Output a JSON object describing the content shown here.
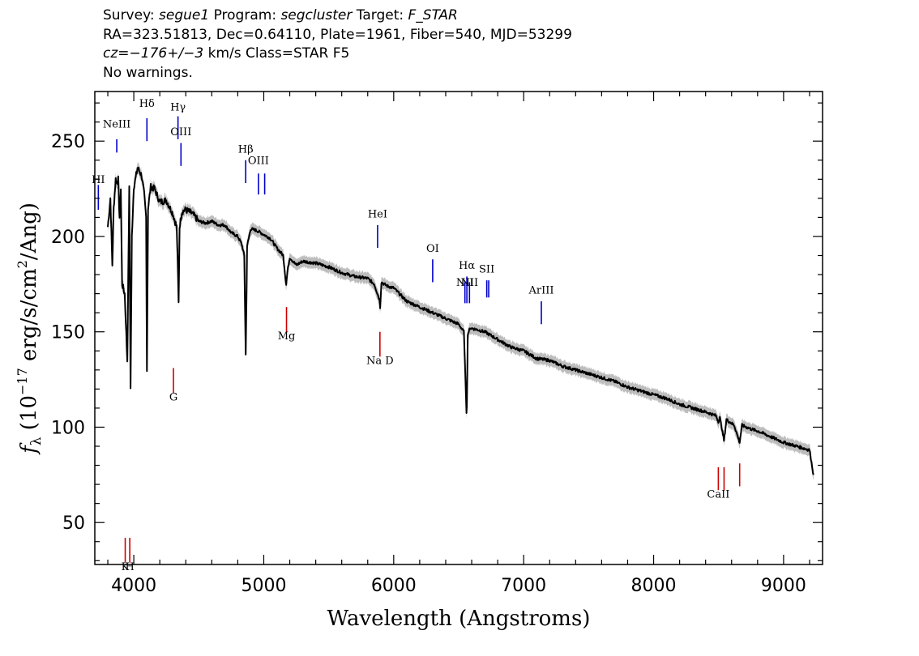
{
  "header": {
    "line1": {
      "survey_label": "Survey: ",
      "survey": "segue1",
      "program_label": " Program: ",
      "program": "segcluster",
      "target_label": " Target: ",
      "target": "F_STAR"
    },
    "line2": "RA=323.51813, Dec=0.64110, Plate=1961, Fiber=540, MJD=53299",
    "line3": {
      "cz_value": "cz=−176+/−3",
      "rest": " km/s Class=STAR F5"
    },
    "line4": "No warnings."
  },
  "chart_data": {
    "type": "line",
    "xlabel": "Wavelength (Angstroms)",
    "ylabel": "f_λ (10^-17 erg/s/cm^2/Ang)",
    "xlim": [
      3700,
      9300
    ],
    "ylim": [
      28,
      276
    ],
    "x_ticks": [
      4000,
      5000,
      6000,
      7000,
      8000,
      9000
    ],
    "y_ticks": [
      50,
      100,
      150,
      200,
      250
    ],
    "grid": false,
    "colors": {
      "spectrum": "#000000",
      "error_band": "#bdbdbd",
      "emission": "#0000cc",
      "absorption": "#cc0000"
    },
    "series": [
      {
        "wavelength": [
          3800,
          3820,
          3835,
          3845,
          3860,
          3870,
          3880,
          3890,
          3900,
          3910,
          3930,
          3950,
          3965,
          3975,
          3985,
          4000,
          4030,
          4060,
          4080,
          4095,
          4101,
          4110,
          4130,
          4160,
          4200,
          4250,
          4300,
          4330,
          4340,
          4345,
          4352,
          4370,
          4400,
          4450,
          4500,
          4550,
          4600,
          4650,
          4700,
          4750,
          4800,
          4830,
          4850,
          4861,
          4872,
          4900,
          4950,
          5000,
          5050,
          5100,
          5150,
          5167,
          5173,
          5183,
          5200,
          5250,
          5300,
          5400,
          5500,
          5600,
          5700,
          5800,
          5850,
          5890,
          5896,
          5905,
          5950,
          6000,
          6100,
          6200,
          6300,
          6400,
          6500,
          6540,
          6560,
          6563,
          6570,
          6590,
          6650,
          6700,
          6800,
          6900,
          7000,
          7100,
          7200,
          7300,
          7400,
          7500,
          7600,
          7700,
          7800,
          7900,
          8000,
          8100,
          8200,
          8300,
          8400,
          8480,
          8498,
          8510,
          8542,
          8560,
          8620,
          8662,
          8680,
          8750,
          8800,
          8900,
          9000,
          9100,
          9150,
          9200,
          9230
        ],
        "flux": [
          205,
          220,
          185,
          215,
          230,
          228,
          230,
          210,
          225,
          175,
          170,
          135,
          225,
          120,
          200,
          226,
          236,
          232,
          222,
          210,
          130,
          215,
          226,
          225,
          218,
          219,
          212,
          205,
          180,
          165,
          205,
          213,
          214,
          212,
          208,
          207,
          208,
          206,
          206,
          202,
          200,
          196,
          190,
          138,
          195,
          204,
          203,
          201,
          199,
          194,
          190,
          178,
          175,
          182,
          189,
          185,
          187,
          186,
          184,
          181,
          179,
          178,
          175,
          167,
          163,
          176,
          174,
          173,
          166,
          163,
          160,
          157,
          154,
          150,
          108,
          112,
          149,
          152,
          151,
          150,
          146,
          142,
          140,
          136,
          135,
          132,
          130,
          128,
          126,
          124,
          121,
          119,
          117,
          115,
          112,
          110,
          108,
          106,
          103,
          105,
          93,
          104,
          101,
          92,
          101,
          99,
          98,
          95,
          92,
          90,
          89,
          88,
          75
        ]
      }
    ],
    "lines": [
      {
        "label": "HI",
        "wavelength": 3727,
        "kind": "emission",
        "y1": 227,
        "y2": 214,
        "label_y": 228
      },
      {
        "label": "NeIII",
        "wavelength": 3869,
        "kind": "emission",
        "y1": 251,
        "y2": 244,
        "label_y": 257
      },
      {
        "label": "Hδ",
        "wavelength": 4101,
        "kind": "emission",
        "y1": 262,
        "y2": 250,
        "label_y": 268
      },
      {
        "label": "Hγ",
        "wavelength": 4340,
        "kind": "emission",
        "y1": 263,
        "y2": 251,
        "label_y": 266
      },
      {
        "label": "OIII",
        "wavelength": 4363,
        "kind": "emission",
        "y1": 249,
        "y2": 237,
        "label_y": 253
      },
      {
        "label": "Hβ",
        "wavelength": 4861,
        "kind": "emission",
        "y1": 240,
        "y2": 228,
        "label_y": 244
      },
      {
        "label": "OIII",
        "wavelength": 4959,
        "kind": "emission",
        "y1": 233,
        "y2": 222,
        "label_y": 238
      },
      {
        "label": "",
        "wavelength": 5007,
        "kind": "emission",
        "y1": 233,
        "y2": 222,
        "label_y": 0
      },
      {
        "label": "HeI",
        "wavelength": 5876,
        "kind": "emission",
        "y1": 206,
        "y2": 194,
        "label_y": 210
      },
      {
        "label": "OI",
        "wavelength": 6300,
        "kind": "emission",
        "y1": 188,
        "y2": 176,
        "label_y": 192
      },
      {
        "label": "NII",
        "wavelength": 6548,
        "kind": "emission",
        "y1": 176,
        "y2": 165,
        "label_y": 174
      },
      {
        "label": "Hα",
        "wavelength": 6563,
        "kind": "emission",
        "y1": 179,
        "y2": 165,
        "label_y": 183
      },
      {
        "label": "NII",
        "wavelength": 6583,
        "kind": "emission",
        "y1": 176,
        "y2": 165,
        "label_y": 174
      },
      {
        "label": "SII",
        "wavelength": 6716,
        "kind": "emission",
        "y1": 177,
        "y2": 168,
        "label_y": 181
      },
      {
        "label": "",
        "wavelength": 6731,
        "kind": "emission",
        "y1": 177,
        "y2": 168,
        "label_y": 0
      },
      {
        "label": "ArIII",
        "wavelength": 7136,
        "kind": "emission",
        "y1": 166,
        "y2": 154,
        "label_y": 170
      },
      {
        "label": "K",
        "wavelength": 3934,
        "kind": "absorption",
        "y1": 42,
        "y2": 29,
        "label_y": 25
      },
      {
        "label": "H",
        "wavelength": 3969,
        "kind": "absorption",
        "y1": 42,
        "y2": 29,
        "label_y": 25
      },
      {
        "label": "G",
        "wavelength": 4305,
        "kind": "absorption",
        "y1": 131,
        "y2": 118,
        "label_y": 114
      },
      {
        "label": "Mg",
        "wavelength": 5175,
        "kind": "absorption",
        "y1": 163,
        "y2": 150,
        "label_y": 146
      },
      {
        "label": "Na D",
        "wavelength": 5894,
        "kind": "absorption",
        "y1": 150,
        "y2": 137,
        "label_y": 133
      },
      {
        "label": "CaII",
        "wavelength": 8498,
        "kind": "absorption",
        "y1": 79,
        "y2": 67,
        "label_y": 63
      },
      {
        "label": "",
        "wavelength": 8542,
        "kind": "absorption",
        "y1": 79,
        "y2": 67,
        "label_y": 0
      },
      {
        "label": "",
        "wavelength": 8662,
        "kind": "absorption",
        "y1": 81,
        "y2": 69,
        "label_y": 0
      }
    ]
  }
}
